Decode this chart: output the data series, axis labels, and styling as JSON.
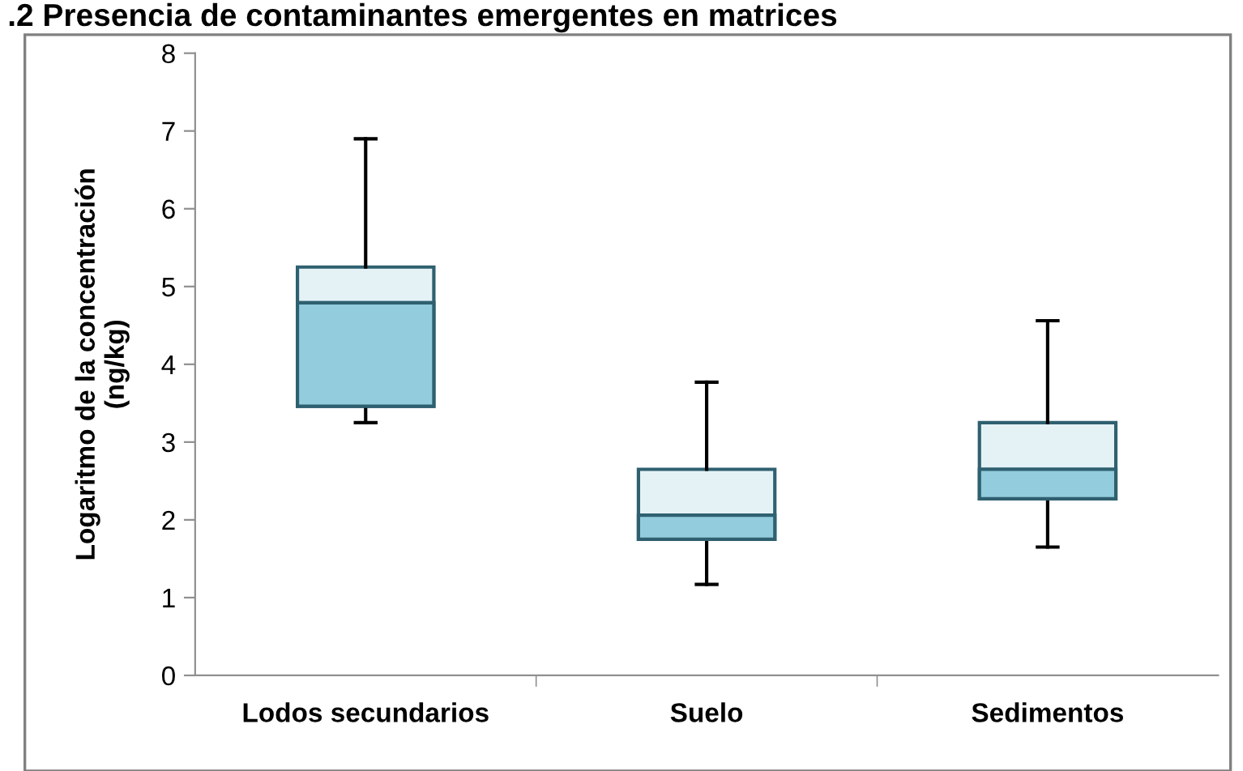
{
  "chart_data": {
    "type": "box",
    "title": ".2 Presencia de contaminantes emergentes en matrices",
    "ylabel": "Logaritmo de la concentración\n(ng/kg)",
    "categories": [
      "Lodos secundarios",
      "Suelo",
      "Sedimentos"
    ],
    "boxes": [
      {
        "low": 3.25,
        "q1": 3.46,
        "median": 4.79,
        "q3": 5.25,
        "high": 6.9
      },
      {
        "low": 1.17,
        "q1": 1.75,
        "median": 2.06,
        "q3": 2.65,
        "high": 3.77
      },
      {
        "low": 1.65,
        "q1": 2.27,
        "median": 2.65,
        "q3": 3.25,
        "high": 4.56
      }
    ],
    "colors": [
      "#93cddd",
      "#93cddd",
      "#93cddd"
    ],
    "ylim": [
      0,
      8
    ],
    "yticks": [
      0,
      1,
      2,
      3,
      4,
      5,
      6,
      7,
      8
    ],
    "grid": false
  }
}
